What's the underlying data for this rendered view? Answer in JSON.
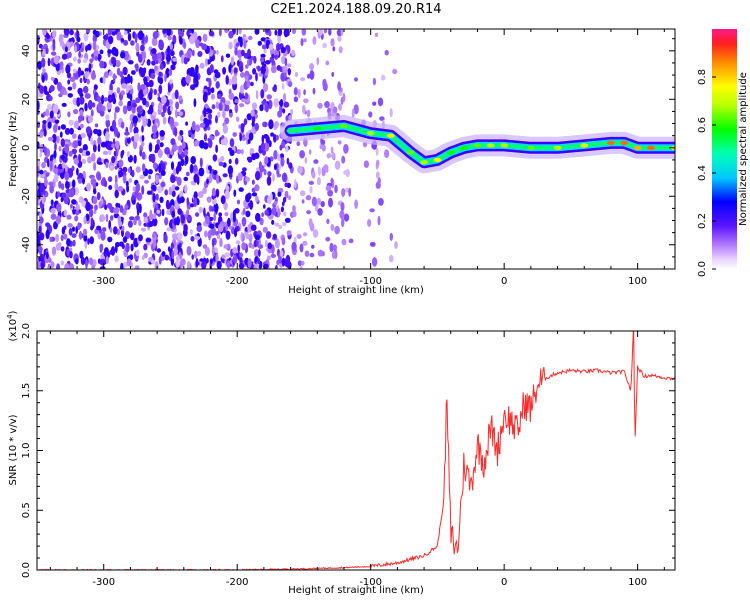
{
  "title": "C2E1.2024.188.09.20.R14",
  "chart_data": [
    {
      "type": "heatmap",
      "xlabel": "Height of straight line (km)",
      "ylabel": "Frequency (Hz)",
      "xlim": [
        -350,
        128
      ],
      "ylim": [
        -50,
        49
      ],
      "xticks": [
        -300,
        -200,
        -100,
        0,
        100
      ],
      "yticks": [
        -40,
        -20,
        0,
        20,
        40
      ],
      "colorbar": {
        "label": "Normalized spectral amplitude",
        "range": [
          0,
          1
        ],
        "ticks": [
          "0.0",
          "0.2",
          "0.4",
          "0.6",
          "0.8"
        ],
        "tick_values": [
          0,
          0.2,
          0.4,
          0.6,
          0.8
        ]
      },
      "signal_ridge": {
        "x": [
          -160,
          -140,
          -120,
          -100,
          -85,
          -70,
          -60,
          -50,
          -40,
          -30,
          -20,
          -10,
          0,
          20,
          40,
          60,
          80,
          90,
          100,
          110,
          128
        ],
        "frequency": [
          7,
          8,
          9,
          6,
          5,
          -2,
          -6,
          -5,
          -2,
          0,
          1,
          1,
          1,
          0,
          0,
          1,
          2,
          2,
          0,
          0,
          0
        ],
        "amplitude": [
          0.55,
          0.6,
          0.65,
          0.7,
          0.75,
          0.65,
          0.7,
          0.75,
          0.6,
          0.6,
          0.65,
          0.7,
          0.7,
          0.65,
          0.7,
          0.75,
          0.9,
          0.9,
          0.85,
          0.9,
          0.8
        ]
      }
    },
    {
      "type": "line",
      "xlabel": "Height of straight line (km)",
      "ylabel": "SNR (10 * v/v)",
      "y_multiplier": "(x10",
      "y_multiplier_exp": "4",
      "y_multiplier_close": ")",
      "xlim": [
        -350,
        128
      ],
      "ylim": [
        0,
        2.0
      ],
      "xticks": [
        -300,
        -200,
        -100,
        0,
        100
      ],
      "yticks": [
        "0.0",
        "0.5",
        "1.0",
        "1.5",
        "2.0"
      ],
      "ytick_values": [
        0,
        0.5,
        1.0,
        1.5,
        2.0
      ],
      "color": "#ff2a2a",
      "series": [
        {
          "x": [
            -350,
            -300,
            -250,
            -200,
            -150,
            -120,
            -100,
            -80,
            -60,
            -50,
            -45,
            -43,
            -40,
            -35,
            -30,
            -25,
            -20,
            -15,
            -10,
            -5,
            0,
            5,
            10,
            15,
            20,
            25,
            30,
            40,
            50,
            60,
            70,
            80,
            90,
            95,
            97,
            98,
            100,
            105,
            110,
            120,
            128
          ],
          "values": [
            0.0,
            0.0,
            0.0,
            0.0,
            0.01,
            0.02,
            0.03,
            0.06,
            0.12,
            0.2,
            0.6,
            1.45,
            0.3,
            0.15,
            0.9,
            0.7,
            1.05,
            0.9,
            1.2,
            1.0,
            1.3,
            1.25,
            1.15,
            1.4,
            1.35,
            1.55,
            1.6,
            1.65,
            1.67,
            1.66,
            1.67,
            1.65,
            1.66,
            1.5,
            2.05,
            1.05,
            1.7,
            1.62,
            1.63,
            1.61,
            1.6
          ]
        }
      ]
    }
  ]
}
